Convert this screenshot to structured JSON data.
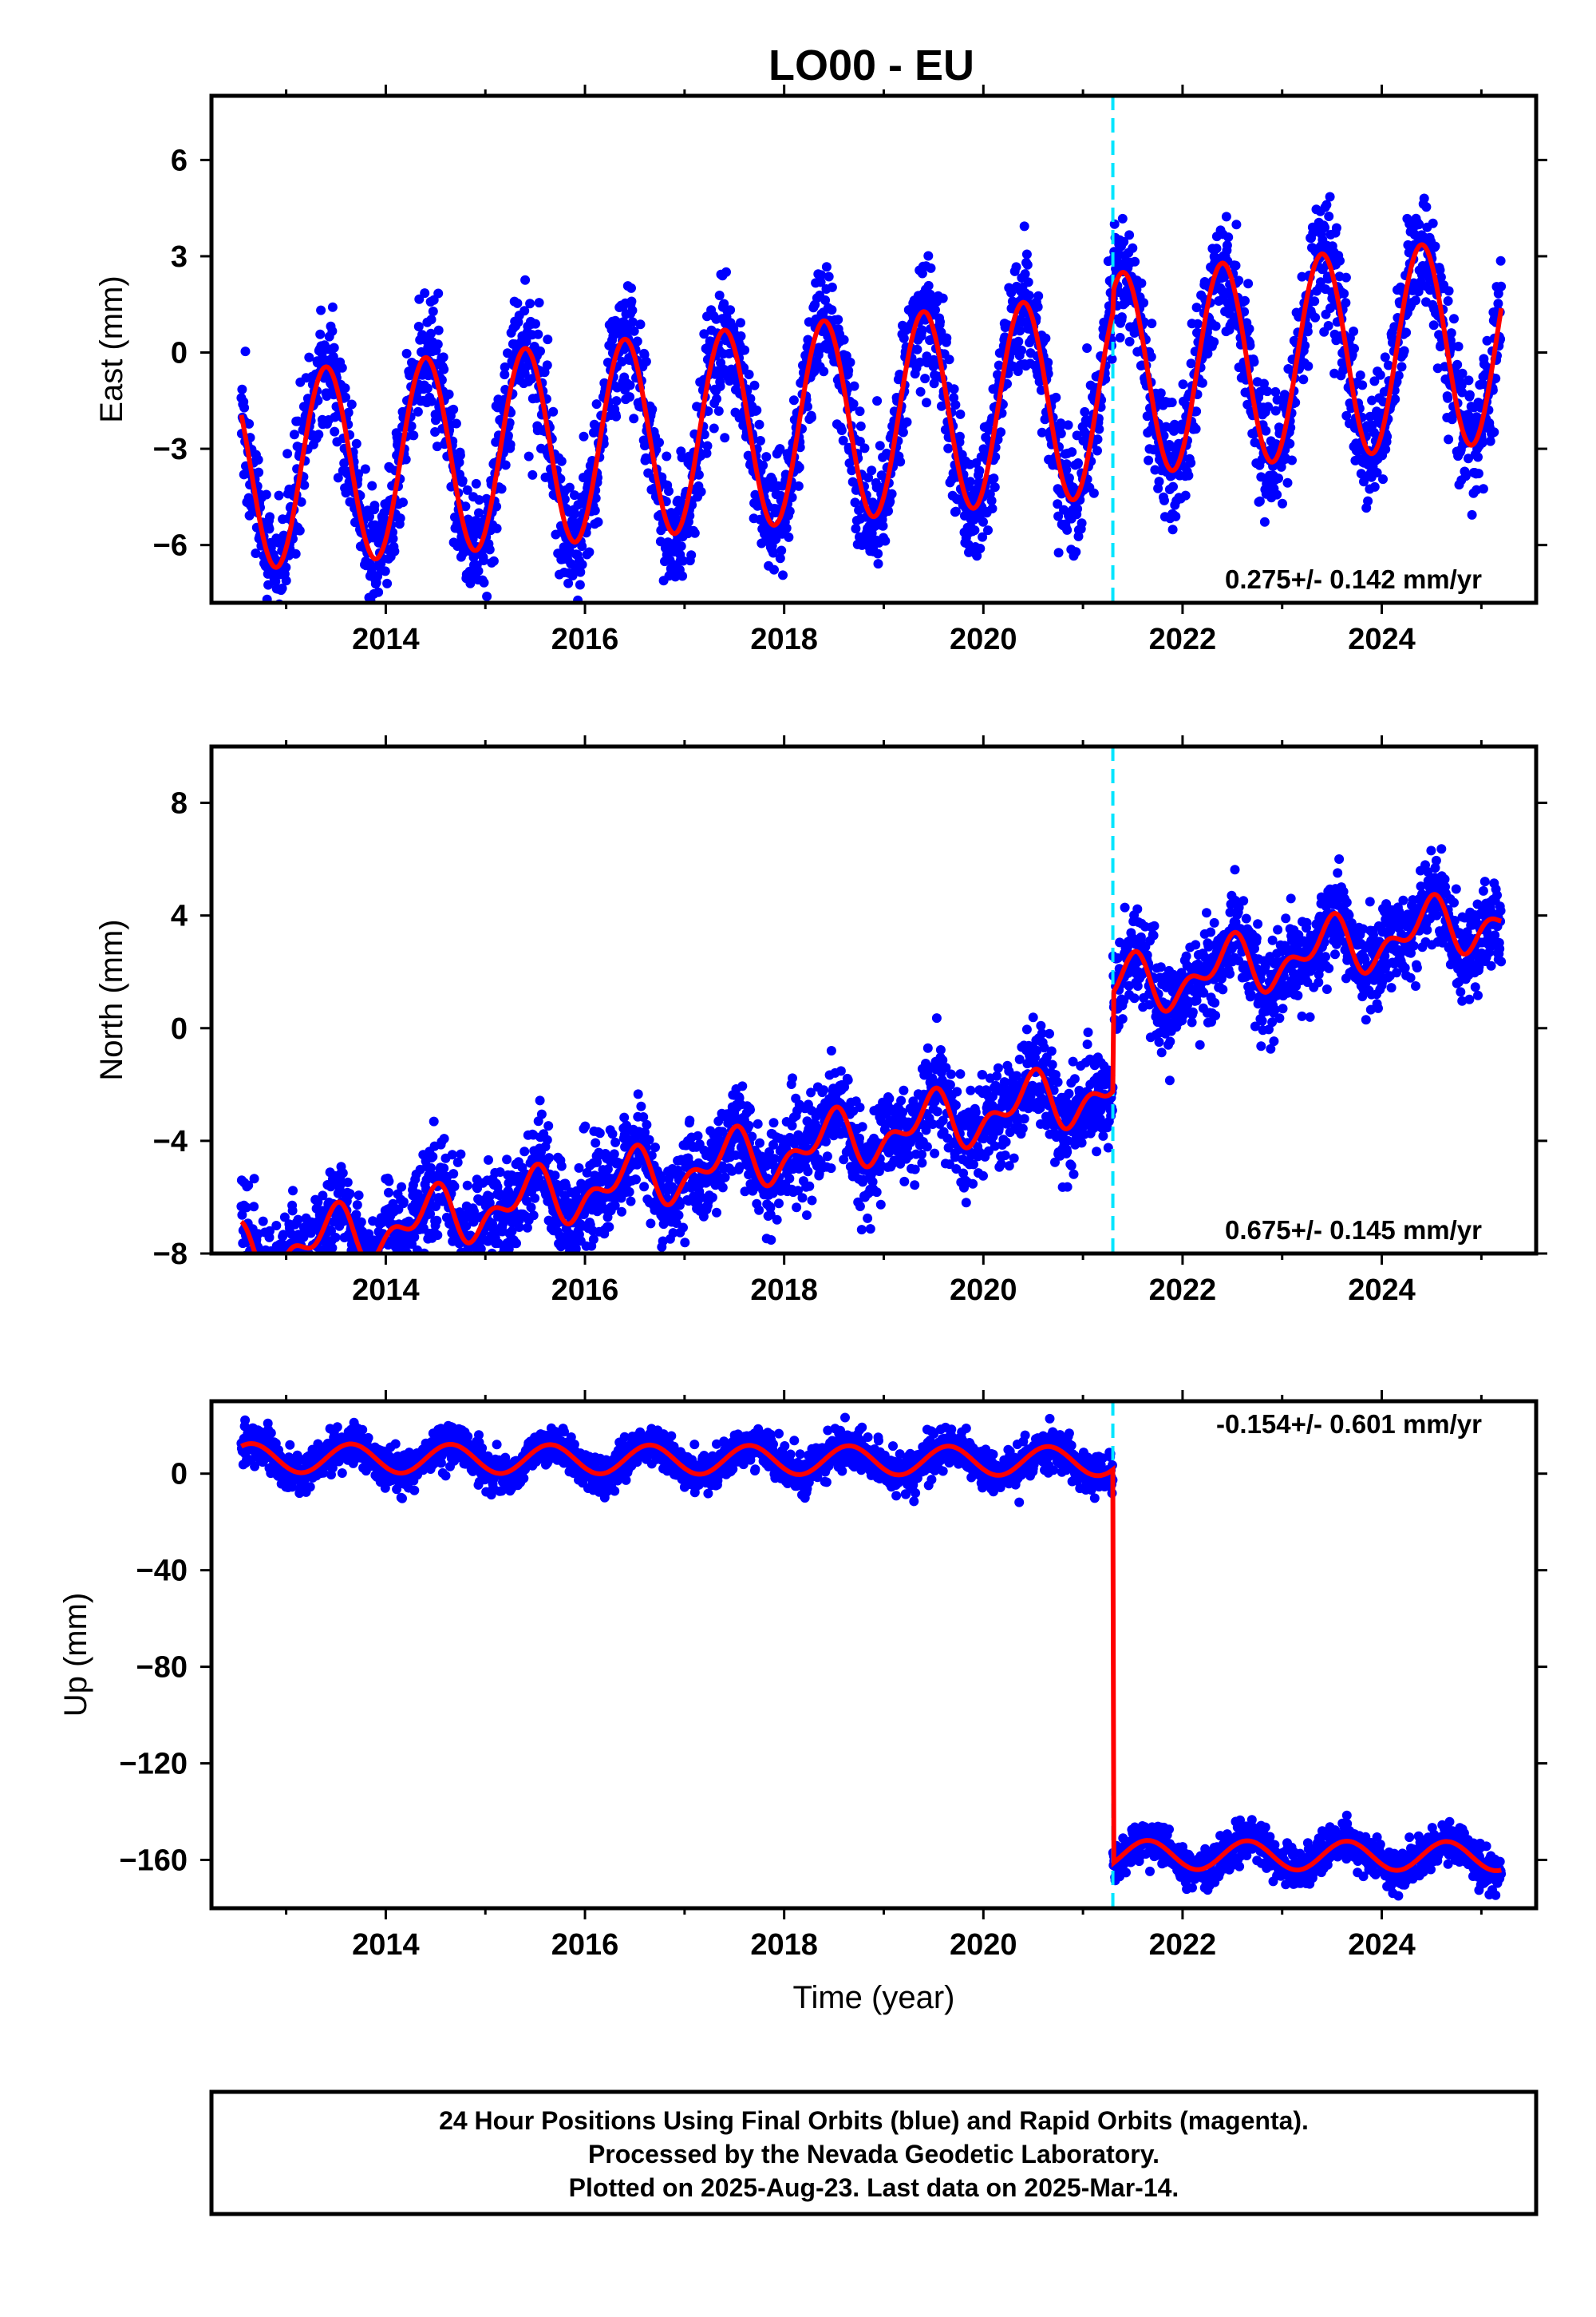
{
  "title": "LO00 - EU",
  "colors": {
    "final_points": "#0000ff",
    "model_line": "#ff0000",
    "offset_line": "#00e5ff",
    "frame": "#000000"
  },
  "footer": {
    "line1": "24 Hour Positions Using Final Orbits (blue) and Rapid Orbits (magenta).",
    "line2": "Processed by the Nevada Geodetic Laboratory.",
    "line3": "Plotted on 2025-Aug-23. Last data on 2025-Mar-14."
  },
  "chart_data": [
    {
      "type": "scatter",
      "component": "east",
      "ylabel": "East (mm)",
      "xlabel": "",
      "xlim": [
        2012.25,
        2025.55
      ],
      "ylim": [
        -7.8,
        8.0
      ],
      "x_ticks": [
        2014,
        2016,
        2018,
        2020,
        2022,
        2024
      ],
      "y_ticks": [
        -6,
        -3,
        0,
        3,
        6
      ],
      "rate_label": "0.275+/- 0.142 mm/yr",
      "rate_position": "bottom-right",
      "offset_epoch": 2021.3,
      "data_start": 2012.55,
      "data_end": 2025.2,
      "model": {
        "rate_mm_per_yr": 0.275,
        "intercept_mm": -2.0,
        "annual_amp_start": 3.05,
        "annual_amp_end": 3.2,
        "annual_peak": 0.4,
        "semiannual_amp": 0.0,
        "step_mm": 0.0,
        "trend_after_offset": 0.65
      },
      "scatter_sd_mm": 0.95,
      "series": [
        {
          "name": "Final Orbits (blue)",
          "kind": "points"
        },
        {
          "name": "model fit",
          "kind": "line"
        }
      ]
    },
    {
      "type": "scatter",
      "component": "north",
      "ylabel": "North (mm)",
      "xlabel": "",
      "xlim": [
        2012.25,
        2025.55
      ],
      "ylim": [
        -8.0,
        10.0
      ],
      "x_ticks": [
        2014,
        2016,
        2018,
        2020,
        2022,
        2024
      ],
      "y_ticks": [
        -8,
        -4,
        0,
        4,
        8
      ],
      "rate_label": "0.675+/- 0.145 mm/yr",
      "rate_position": "bottom-right",
      "offset_epoch": 2021.3,
      "data_start": 2012.55,
      "data_end": 2025.2,
      "model": {
        "rate_mm_per_yr": 0.675,
        "intercept_mm": -3.8,
        "annual_amp_start": 0.8,
        "annual_amp_end": 0.8,
        "annual_peak": 0.45,
        "semiannual_amp": 0.55,
        "step_mm": 3.5,
        "trend_after_offset": 0.0
      },
      "scatter_sd_mm": 0.85,
      "series": [
        {
          "name": "Final Orbits (blue)",
          "kind": "points"
        },
        {
          "name": "model fit",
          "kind": "line"
        }
      ]
    },
    {
      "type": "scatter",
      "component": "up",
      "ylabel": "Up (mm)",
      "xlabel": "Time (year)",
      "xlim": [
        2012.25,
        2025.55
      ],
      "ylim": [
        -180,
        30
      ],
      "x_ticks": [
        2014,
        2016,
        2018,
        2020,
        2022,
        2024
      ],
      "y_ticks": [
        -160,
        -120,
        -80,
        -40,
        0
      ],
      "rate_label": "-0.154+/- 0.601 mm/yr",
      "rate_position": "top-right",
      "offset_epoch": 2021.3,
      "data_start": 2012.55,
      "data_end": 2025.2,
      "model": {
        "rate_mm_per_yr": -0.154,
        "intercept_mm": 5.5,
        "annual_amp_start": 6.0,
        "annual_amp_end": 6.0,
        "annual_peak": 0.65,
        "semiannual_amp": 0.0,
        "step_mm": -163.0,
        "trend_after_offset": 0.0
      },
      "scatter_sd_mm": 4.0,
      "series": [
        {
          "name": "Final Orbits (blue)",
          "kind": "points"
        },
        {
          "name": "model fit",
          "kind": "line"
        }
      ]
    }
  ]
}
